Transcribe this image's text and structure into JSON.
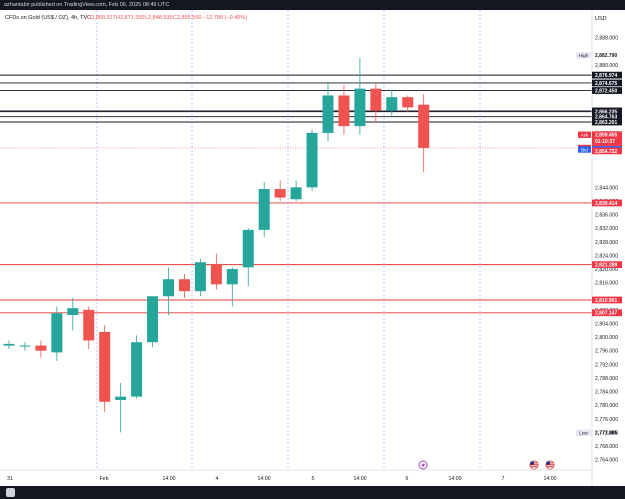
{
  "header": {
    "publisher_line": "azhantabir published on TradingView.com, Feb 06, 2025 08:49 UTC",
    "symbol_line": "CFDs on Gold (US$ / OZ), 4h, TVC",
    "ohlc": {
      "open": "O2,868.317",
      "high": "H2,871.350",
      "low": "L2,848.535",
      "close": "C2,855.560",
      "change": "−12.780 (−0.45%)"
    }
  },
  "colors": {
    "up": "#26a69a",
    "down": "#ef5350",
    "level_line": "#131722",
    "red_level": "#e53935",
    "session_line": "#8c9eff",
    "axis_text": "#131722"
  },
  "chart_data": {
    "type": "candlestick",
    "currency": "USD",
    "y_range": [
      2763,
      2892
    ],
    "y_ticks": [
      "2,888.000",
      "2,880.000",
      "2,872.000",
      "2,864.000",
      "2,860.000",
      "2,856.000",
      "2,844.000",
      "2,840.000",
      "2,836.000",
      "2,832.000",
      "2,828.000",
      "2,824.000",
      "2,820.000",
      "2,816.000",
      "2,808.000",
      "2,804.000",
      "2,800.000",
      "2,796.000",
      "2,792.000",
      "2,788.000",
      "2,784.000",
      "2,780.000",
      "2,776.000",
      "2,772.000",
      "2,768.000",
      "2,764.000"
    ],
    "x_ticks": [
      "31",
      "Feb",
      "14:00",
      "4",
      "14:00",
      "5",
      "14:00",
      "6",
      "14:00",
      "7",
      "14:00"
    ],
    "candles": [
      {
        "o": 2797.5,
        "h": 2799.0,
        "l": 2796.5,
        "c": 2798.0
      },
      {
        "o": 2797.5,
        "h": 2798.5,
        "l": 2796.0,
        "c": 2797.5
      },
      {
        "o": 2797.5,
        "h": 2799.0,
        "l": 2794.0,
        "c": 2796.0
      },
      {
        "o": 2795.5,
        "h": 2809.0,
        "l": 2793.0,
        "c": 2807.0
      },
      {
        "o": 2806.5,
        "h": 2811.5,
        "l": 2802.0,
        "c": 2808.5
      },
      {
        "o": 2808.0,
        "h": 2809.0,
        "l": 2796.5,
        "c": 2799.0
      },
      {
        "o": 2801.5,
        "h": 2803.5,
        "l": 2778.0,
        "c": 2781.0
      },
      {
        "o": 2781.5,
        "h": 2786.5,
        "l": 2772.0,
        "c": 2782.5
      },
      {
        "o": 2782.5,
        "h": 2800.5,
        "l": 2782.0,
        "c": 2798.5
      },
      {
        "o": 2798.5,
        "h": 2811.5,
        "l": 2797.0,
        "c": 2812.0
      },
      {
        "o": 2812.0,
        "h": 2820.5,
        "l": 2806.5,
        "c": 2817.0
      },
      {
        "o": 2817.0,
        "h": 2818.5,
        "l": 2811.5,
        "c": 2813.5
      },
      {
        "o": 2813.5,
        "h": 2823.0,
        "l": 2812.0,
        "c": 2822.0
      },
      {
        "o": 2821.5,
        "h": 2824.5,
        "l": 2814.0,
        "c": 2815.5
      },
      {
        "o": 2815.5,
        "h": 2820.5,
        "l": 2809.0,
        "c": 2820.0
      },
      {
        "o": 2820.5,
        "h": 2832.0,
        "l": 2815.0,
        "c": 2831.5
      },
      {
        "o": 2831.5,
        "h": 2845.5,
        "l": 2829.5,
        "c": 2843.5
      },
      {
        "o": 2843.5,
        "h": 2846.0,
        "l": 2840.0,
        "c": 2841.0
      },
      {
        "o": 2840.5,
        "h": 2846.0,
        "l": 2840.0,
        "c": 2844.0
      },
      {
        "o": 2844.0,
        "h": 2861.0,
        "l": 2843.0,
        "c": 2860.0
      },
      {
        "o": 2860.0,
        "h": 2874.5,
        "l": 2857.5,
        "c": 2871.0
      },
      {
        "o": 2871.0,
        "h": 2874.0,
        "l": 2859.5,
        "c": 2862.0
      },
      {
        "o": 2862.0,
        "h": 2882.0,
        "l": 2859.5,
        "c": 2873.0
      },
      {
        "o": 2873.0,
        "h": 2874.5,
        "l": 2863.0,
        "c": 2866.5
      },
      {
        "o": 2866.5,
        "h": 2872.5,
        "l": 2865.0,
        "c": 2870.5
      },
      {
        "o": 2870.5,
        "h": 2871.0,
        "l": 2866.0,
        "c": 2867.5
      },
      {
        "o": 2868.3,
        "h": 2871.4,
        "l": 2848.5,
        "c": 2855.6
      }
    ],
    "black_levels": [
      2876.974,
      2874.675,
      2872.45,
      2866.452,
      2866.235,
      2864.763,
      2863.201
    ],
    "red_levels": [
      2839.414,
      2821.289,
      2810.901,
      2807.147
    ],
    "current_price": 2855.56,
    "price_labels": [
      {
        "tag": "High",
        "value": "2,882.790",
        "style": "plain"
      },
      {
        "value": "2,876.974",
        "style": "dark"
      },
      {
        "value": "2,874.675",
        "style": "dark"
      },
      {
        "value": "2,872.450",
        "style": "dark"
      },
      {
        "value": "2,866.452",
        "style": "dark"
      },
      {
        "value": "2,866.235",
        "style": "dark"
      },
      {
        "value": "2,864.763",
        "style": "dark"
      },
      {
        "value": "2,863.201",
        "style": "dark"
      },
      {
        "tag": "Ask",
        "value": "2,859.455",
        "style": "red"
      },
      {
        "tag": "GOLD",
        "value": "2,855.560",
        "style": "red"
      },
      {
        "value": "01:10:37",
        "style": "red"
      },
      {
        "tag": "Bid",
        "value": "2,855.120",
        "style": "blue"
      },
      {
        "value": "2,854.722",
        "style": "red"
      },
      {
        "value": "2,839.414",
        "style": "red"
      },
      {
        "value": "2,821.289",
        "style": "red"
      },
      {
        "value": "2,810.901",
        "style": "red"
      },
      {
        "value": "2,807.147",
        "style": "red"
      },
      {
        "tag": "Low",
        "value": "2,771.885",
        "style": "plain"
      }
    ]
  }
}
